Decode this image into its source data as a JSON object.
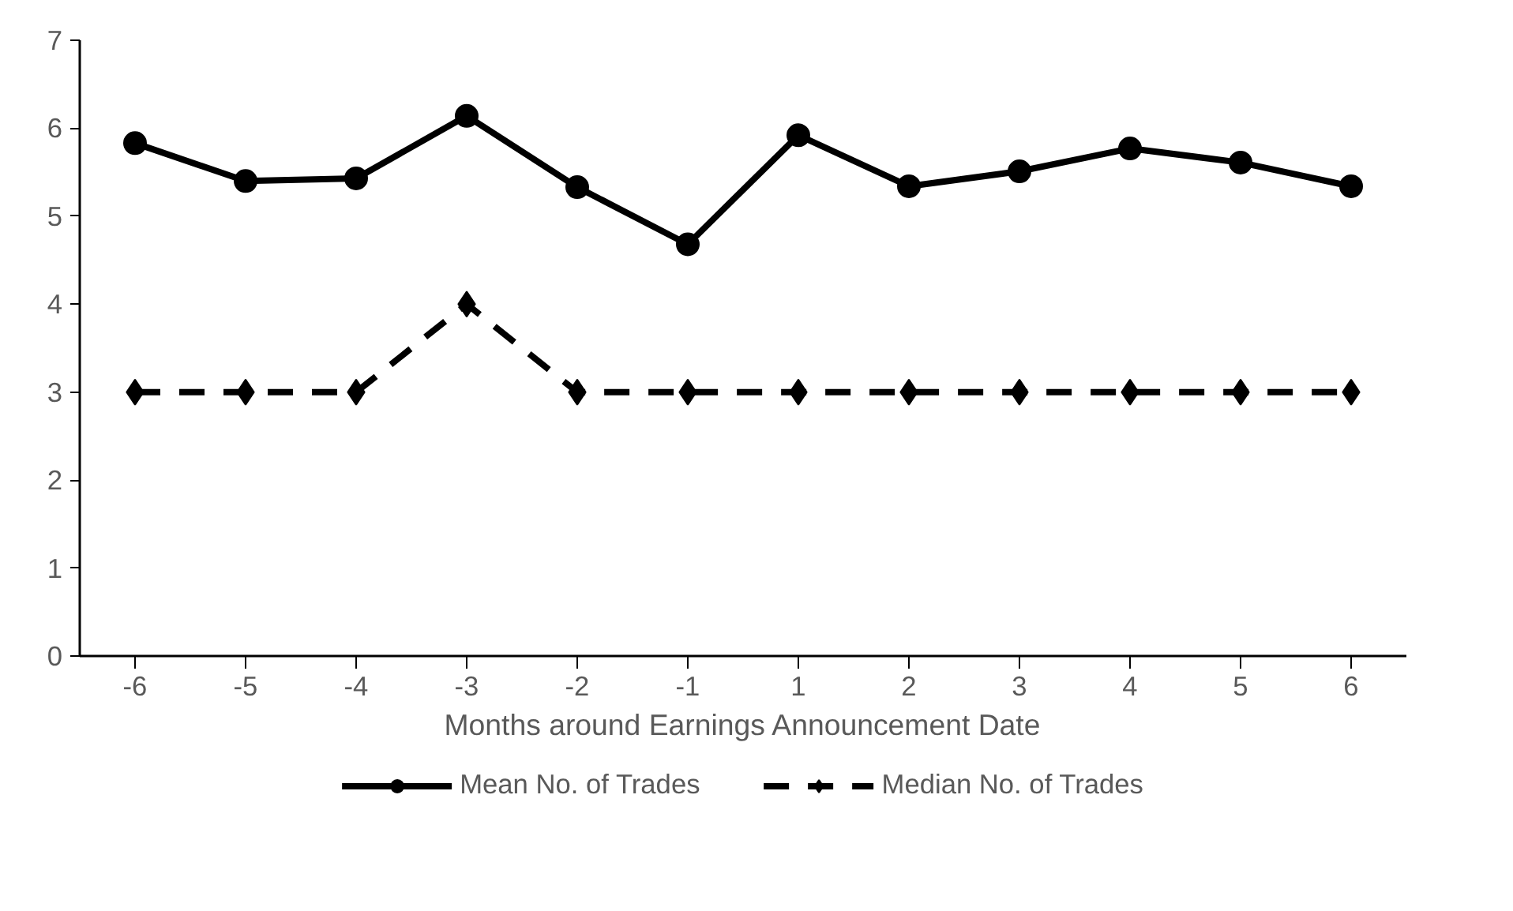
{
  "chart_data": {
    "type": "line",
    "xlabel": "Months around Earnings Announcement Date",
    "categories": [
      "-6",
      "-5",
      "-4",
      "-3",
      "-2",
      "-1",
      "1",
      "2",
      "3",
      "4",
      "5",
      "6"
    ],
    "ylim": [
      0,
      7
    ],
    "yticks": [
      0,
      1,
      2,
      3,
      4,
      5,
      6,
      7
    ],
    "grid": false,
    "legend": "bottom",
    "series": [
      {
        "name": "Mean No. of Trades",
        "color": "#000000",
        "marker": "circle",
        "line_style": "solid",
        "values": [
          5.83,
          5.4,
          5.43,
          6.14,
          5.33,
          4.68,
          5.92,
          5.34,
          5.51,
          5.77,
          5.61,
          5.34
        ]
      },
      {
        "name": "Median No. of Trades",
        "color": "#000000",
        "marker": "diamond",
        "line_style": "dashed",
        "values": [
          3,
          3,
          3,
          4,
          3,
          3,
          3,
          3,
          3,
          3,
          3,
          3
        ]
      }
    ]
  }
}
